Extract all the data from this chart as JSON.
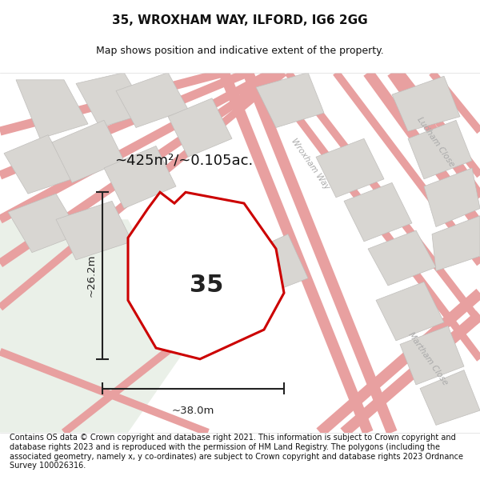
{
  "title": "35, WROXHAM WAY, ILFORD, IG6 2GG",
  "subtitle": "Map shows position and indicative extent of the property.",
  "footer": "Contains OS data © Crown copyright and database right 2021. This information is subject to Crown copyright and database rights 2023 and is reproduced with the permission of HM Land Registry. The polygons (including the associated geometry, namely x, y co-ordinates) are subject to Crown copyright and database rights 2023 Ordnance Survey 100026316.",
  "area_label": "~425m²/~0.105ac.",
  "number_label": "35",
  "dim_width": "~38.0m",
  "dim_height": "~26.2m",
  "property_edge": "#cc0000",
  "dim_color": "#222222",
  "fig_width": 6.0,
  "fig_height": 6.25,
  "title_fontsize": 11,
  "subtitle_fontsize": 9,
  "footer_fontsize": 7,
  "map_bg": "#f5f3f0",
  "open_area_color": "#eaf0e8",
  "block_color": "#d8d6d2",
  "road_line_color": "#e8a0a0",
  "street_label_color": "#aaaaaa"
}
